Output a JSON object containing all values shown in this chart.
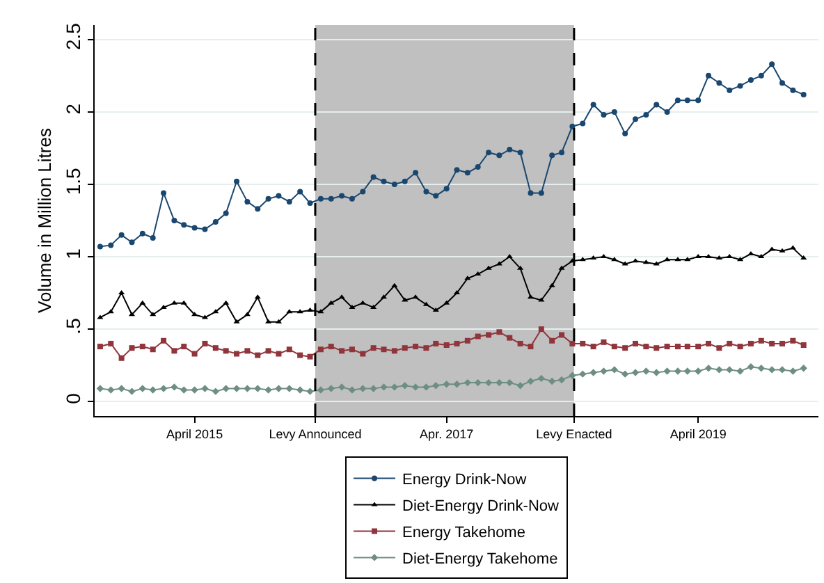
{
  "chart_data": {
    "type": "line",
    "ylabel": "Volume in Million Litres",
    "x": [
      "2014-07",
      "2014-08",
      "2014-09",
      "2014-10",
      "2014-11",
      "2014-12",
      "2015-01",
      "2015-02",
      "2015-03",
      "2015-04",
      "2015-05",
      "2015-06",
      "2015-07",
      "2015-08",
      "2015-09",
      "2015-10",
      "2015-11",
      "2015-12",
      "2016-01",
      "2016-02",
      "2016-03",
      "2016-04",
      "2016-05",
      "2016-06",
      "2016-07",
      "2016-08",
      "2016-09",
      "2016-10",
      "2016-11",
      "2016-12",
      "2017-01",
      "2017-02",
      "2017-03",
      "2017-04",
      "2017-05",
      "2017-06",
      "2017-07",
      "2017-08",
      "2017-09",
      "2017-10",
      "2017-11",
      "2017-12",
      "2018-01",
      "2018-02",
      "2018-03",
      "2018-04",
      "2018-05",
      "2018-06",
      "2018-07",
      "2018-08",
      "2018-09",
      "2018-10",
      "2018-11",
      "2018-12",
      "2019-01",
      "2019-02",
      "2019-03",
      "2019-04",
      "2019-05",
      "2019-06",
      "2019-07",
      "2019-08",
      "2019-09",
      "2019-10",
      "2019-11",
      "2019-12",
      "2020-01",
      "2020-02"
    ],
    "series": [
      {
        "name": "Energy Drink-Now",
        "color": "#1a476f",
        "marker": "circle",
        "values": [
          1.07,
          1.08,
          1.15,
          1.1,
          1.16,
          1.13,
          1.44,
          1.25,
          1.22,
          1.2,
          1.19,
          1.24,
          1.3,
          1.52,
          1.38,
          1.33,
          1.4,
          1.42,
          1.38,
          1.45,
          1.37,
          1.4,
          1.4,
          1.42,
          1.4,
          1.45,
          1.55,
          1.52,
          1.5,
          1.52,
          1.58,
          1.45,
          1.42,
          1.47,
          1.6,
          1.58,
          1.62,
          1.72,
          1.7,
          1.74,
          1.72,
          1.44,
          1.44,
          1.7,
          1.72,
          1.9,
          1.92,
          2.05,
          1.98,
          2.0,
          1.85,
          1.95,
          1.98,
          2.05,
          2.0,
          2.08,
          2.08,
          2.08,
          2.25,
          2.2,
          2.15,
          2.18,
          2.22,
          2.25,
          2.33,
          2.2,
          2.15,
          2.12
        ]
      },
      {
        "name": "Diet-Energy Drink-Now",
        "color": "#000000",
        "marker": "triangle",
        "values": [
          0.58,
          0.62,
          0.75,
          0.6,
          0.68,
          0.6,
          0.65,
          0.68,
          0.68,
          0.6,
          0.58,
          0.62,
          0.68,
          0.55,
          0.6,
          0.72,
          0.55,
          0.55,
          0.62,
          0.62,
          0.63,
          0.62,
          0.68,
          0.72,
          0.65,
          0.68,
          0.65,
          0.72,
          0.8,
          0.7,
          0.72,
          0.67,
          0.63,
          0.68,
          0.75,
          0.85,
          0.88,
          0.92,
          0.95,
          1.0,
          0.92,
          0.72,
          0.7,
          0.8,
          0.92,
          0.97,
          0.98,
          0.99,
          1.0,
          0.98,
          0.95,
          0.97,
          0.96,
          0.95,
          0.98,
          0.98,
          0.98,
          1.0,
          1.0,
          0.99,
          1.0,
          0.98,
          1.02,
          1.0,
          1.05,
          1.04,
          1.06,
          0.99
        ]
      },
      {
        "name": "Energy Takehome",
        "color": "#90353b",
        "marker": "square",
        "values": [
          0.38,
          0.4,
          0.3,
          0.37,
          0.38,
          0.36,
          0.42,
          0.35,
          0.38,
          0.33,
          0.4,
          0.37,
          0.35,
          0.33,
          0.35,
          0.32,
          0.35,
          0.33,
          0.36,
          0.32,
          0.31,
          0.36,
          0.38,
          0.35,
          0.36,
          0.33,
          0.37,
          0.36,
          0.35,
          0.37,
          0.38,
          0.37,
          0.4,
          0.39,
          0.4,
          0.42,
          0.45,
          0.46,
          0.48,
          0.44,
          0.4,
          0.38,
          0.5,
          0.42,
          0.46,
          0.4,
          0.4,
          0.38,
          0.41,
          0.38,
          0.37,
          0.4,
          0.38,
          0.37,
          0.38,
          0.38,
          0.38,
          0.38,
          0.4,
          0.37,
          0.4,
          0.38,
          0.4,
          0.42,
          0.4,
          0.4,
          0.42,
          0.39
        ]
      },
      {
        "name": "Diet-Energy Takehome",
        "color": "#6e8e84",
        "marker": "diamond",
        "values": [
          0.09,
          0.08,
          0.09,
          0.07,
          0.09,
          0.08,
          0.09,
          0.1,
          0.08,
          0.08,
          0.09,
          0.07,
          0.09,
          0.09,
          0.09,
          0.09,
          0.08,
          0.09,
          0.09,
          0.08,
          0.07,
          0.08,
          0.09,
          0.1,
          0.08,
          0.09,
          0.09,
          0.1,
          0.1,
          0.11,
          0.1,
          0.1,
          0.11,
          0.12,
          0.12,
          0.13,
          0.13,
          0.13,
          0.13,
          0.13,
          0.11,
          0.14,
          0.16,
          0.14,
          0.15,
          0.18,
          0.19,
          0.2,
          0.21,
          0.22,
          0.19,
          0.2,
          0.21,
          0.2,
          0.21,
          0.21,
          0.21,
          0.21,
          0.23,
          0.22,
          0.22,
          0.21,
          0.24,
          0.23,
          0.22,
          0.22,
          0.21,
          0.23
        ]
      }
    ],
    "xlim": [
      "2014-06-15",
      "2020-03-15"
    ],
    "xticks": [
      {
        "value": "2015-04-01",
        "label": "April 2015"
      },
      {
        "value": "2016-03-16",
        "label": "Levy Announced"
      },
      {
        "value": "2017-04-01",
        "label": "Apr. 2017"
      },
      {
        "value": "2018-04-06",
        "label": "Levy Enacted"
      },
      {
        "value": "2019-04-01",
        "label": "April 2019"
      }
    ],
    "ylim": [
      -0.1,
      2.6
    ],
    "yticks": [
      0,
      {
        "value": 0.5,
        "label": ".5"
      },
      1,
      1.5,
      2,
      2.5
    ],
    "ref_lines": [
      {
        "axis": "x",
        "value": "2016-03-16",
        "color": "#000000",
        "line_style": "dashed"
      },
      {
        "axis": "x",
        "value": "2018-04-06",
        "color": "#000000",
        "line_style": "dashed"
      }
    ],
    "bands": [
      {
        "axis": "x",
        "from": "2016-03-16",
        "to": "2018-04-06",
        "color": "#c0c0c0"
      }
    ],
    "grid": "y",
    "legend": "bottom"
  }
}
